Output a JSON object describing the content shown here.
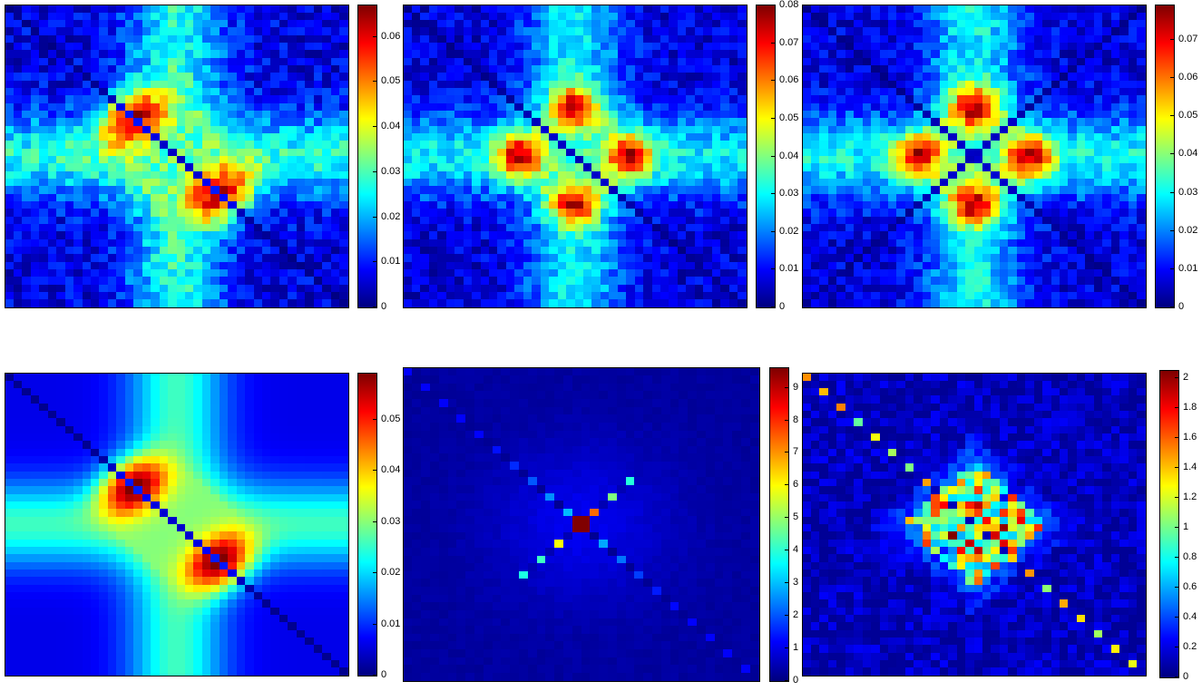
{
  "chart_data": [
    {
      "type": "heatmap",
      "pattern": "cross",
      "variant": "noisy-cross-anti",
      "colormap": "jet",
      "grid_size": 40,
      "clim": [
        0,
        0.067
      ],
      "colorbar_ticks": [
        "0",
        "0.01",
        "0.02",
        "0.03",
        "0.04",
        "0.05",
        "0.06"
      ],
      "colorbar_values": [
        0,
        0.01,
        0.02,
        0.03,
        0.04,
        0.05,
        0.06
      ]
    },
    {
      "type": "heatmap",
      "pattern": "cross",
      "variant": "noisy-four-lobes",
      "colormap": "jet",
      "grid_size": 40,
      "clim": [
        0,
        0.08
      ],
      "colorbar_ticks": [
        "0",
        "0.01",
        "0.02",
        "0.03",
        "0.04",
        "0.05",
        "0.06",
        "0.07",
        "0.08"
      ],
      "colorbar_values": [
        0,
        0.01,
        0.02,
        0.03,
        0.04,
        0.05,
        0.06,
        0.07,
        0.08
      ]
    },
    {
      "type": "heatmap",
      "pattern": "cross",
      "variant": "noisy-four-lobes-x",
      "colormap": "jet",
      "grid_size": 40,
      "clim": [
        0,
        0.079
      ],
      "colorbar_ticks": [
        "0",
        "0.01",
        "0.02",
        "0.03",
        "0.04",
        "0.05",
        "0.06",
        "0.07"
      ],
      "colorbar_values": [
        0,
        0.01,
        0.02,
        0.03,
        0.04,
        0.05,
        0.06,
        0.07
      ]
    },
    {
      "type": "heatmap",
      "pattern": "cross",
      "variant": "smooth-cross-anti",
      "colormap": "jet",
      "grid_size": 40,
      "clim": [
        0,
        0.059
      ],
      "colorbar_ticks": [
        "0",
        "0.01",
        "0.02",
        "0.03",
        "0.04",
        "0.05"
      ],
      "colorbar_values": [
        0,
        0.01,
        0.02,
        0.03,
        0.04,
        0.05
      ]
    },
    {
      "type": "heatmap",
      "pattern": "diagonal",
      "variant": "sparse-x",
      "colormap": "jet",
      "grid_size": 40,
      "clim": [
        0,
        9.6
      ],
      "colorbar_ticks": [
        "0",
        "1",
        "2",
        "3",
        "4",
        "5",
        "6",
        "7",
        "8",
        "9"
      ],
      "colorbar_values": [
        0,
        1,
        2,
        3,
        4,
        5,
        6,
        7,
        8,
        9
      ]
    },
    {
      "type": "heatmap",
      "pattern": "diagonal",
      "variant": "diamond-diag",
      "colormap": "jet",
      "grid_size": 40,
      "clim": [
        0,
        2.05
      ],
      "colorbar_ticks": [
        "0",
        "0.2",
        "0.4",
        "0.6",
        "0.8",
        "1",
        "1.2",
        "1.4",
        "1.6",
        "1.8",
        "2"
      ],
      "colorbar_values": [
        0,
        0.2,
        0.4,
        0.6,
        0.8,
        1,
        1.2,
        1.4,
        1.6,
        1.8,
        2
      ]
    }
  ]
}
